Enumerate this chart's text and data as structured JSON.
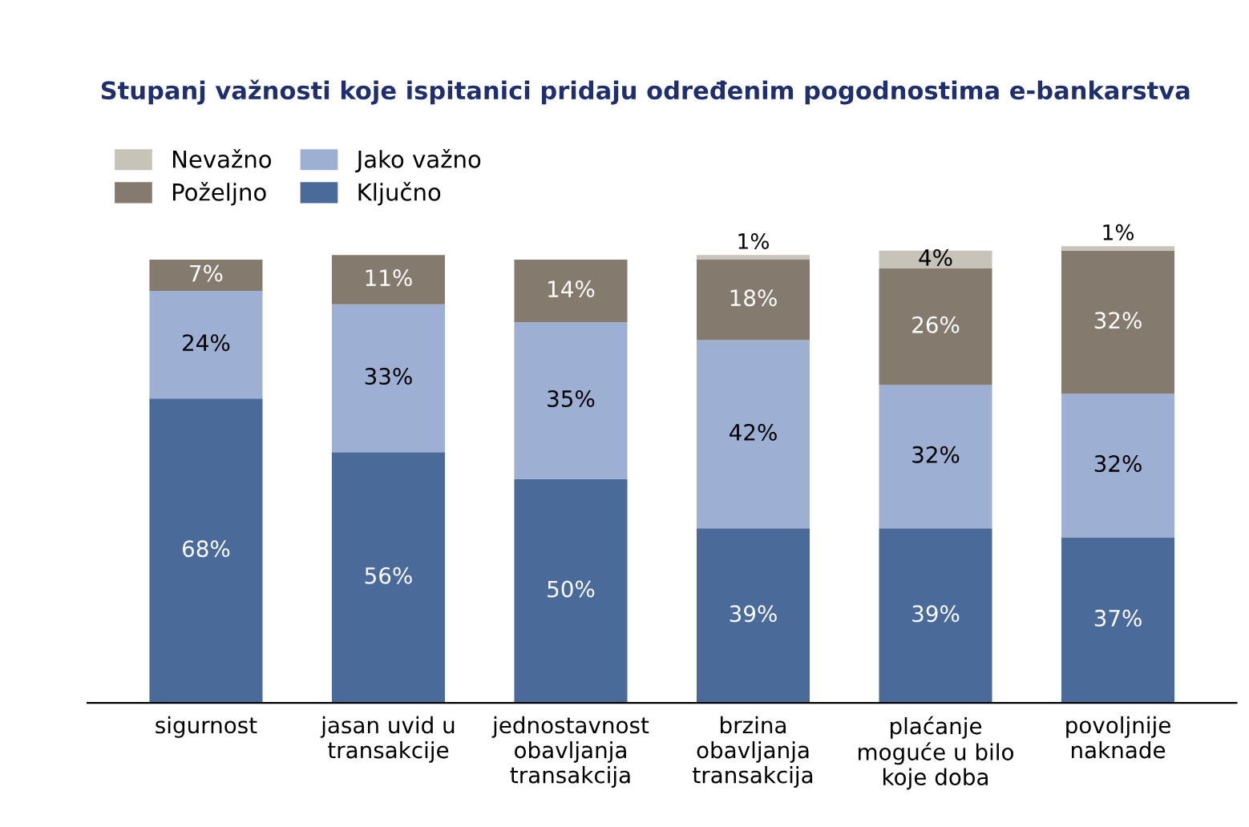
{
  "chart_data": {
    "type": "bar",
    "stacked": true,
    "title": "Stupanj važnosti koje ispitanici pridaju određenim pogodnostima e-bankarstva",
    "categories": [
      "sigurnost",
      "jasan uvid u\ntransakcije",
      "jednostavnost\nobavljanja\ntransakcija",
      "brzina\nobavljanja\ntransakcija",
      "plaćanje\nmoguće u bilo\nkoje doba",
      "povoljnije\nnaknade"
    ],
    "series": [
      {
        "name": "Ključno",
        "color": "#4a6a9a",
        "values": [
          68,
          56,
          50,
          39,
          39,
          37
        ],
        "value_labels": [
          "68%",
          "56%",
          "50%",
          "39%",
          "39%",
          "37%"
        ]
      },
      {
        "name": "Jako važno",
        "color": "#9db0d3",
        "values": [
          24,
          33,
          35,
          42,
          32,
          32
        ],
        "value_labels": [
          "24%",
          "33%",
          "35%",
          "42%",
          "32%",
          "32%"
        ]
      },
      {
        "name": "Poželjno",
        "color": "#857a6e",
        "values": [
          7,
          11,
          14,
          18,
          26,
          32
        ],
        "value_labels": [
          "7%",
          "11%",
          "14%",
          "18%",
          "26%",
          "32%"
        ]
      },
      {
        "name": "Nevažno",
        "color": "#c8c3b9",
        "values": [
          null,
          null,
          null,
          1,
          4,
          1
        ],
        "value_labels": [
          null,
          null,
          null,
          "1%",
          "4%",
          "1%"
        ]
      }
    ],
    "legend": "top left",
    "grid": false
  }
}
